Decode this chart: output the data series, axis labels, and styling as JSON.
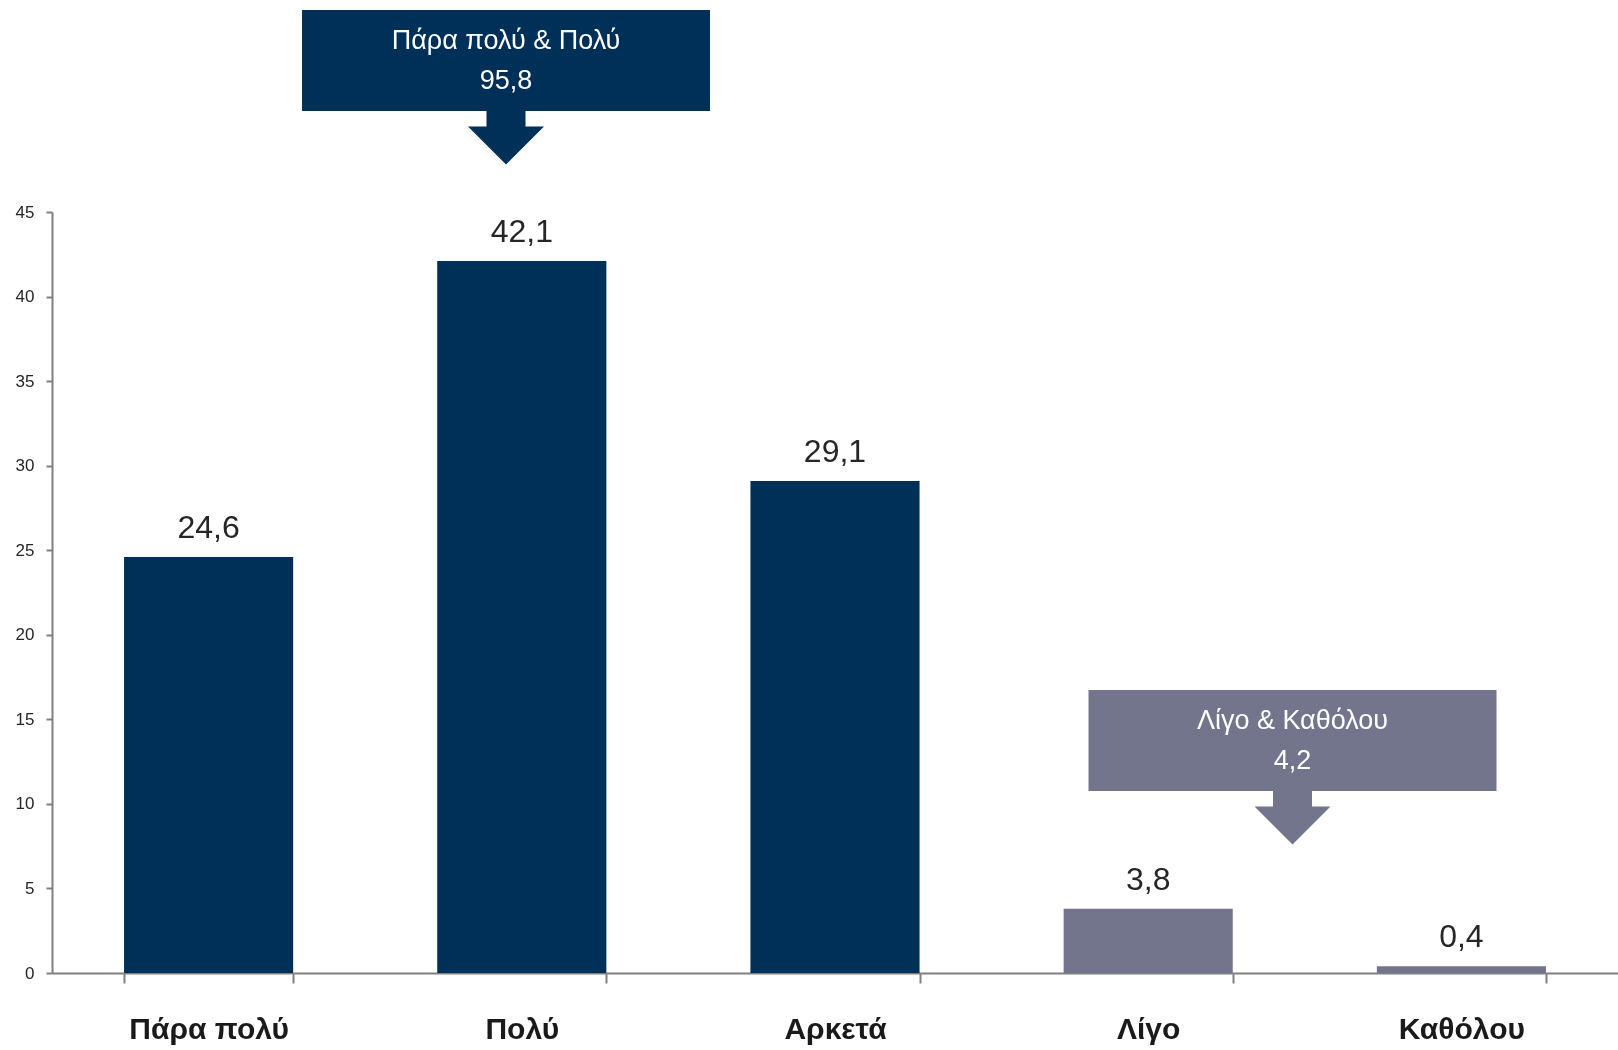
{
  "chart_data": {
    "type": "bar",
    "categories": [
      "Πάρα πολύ",
      "Πολύ",
      "Αρκετά",
      "Λίγο",
      "Καθόλου"
    ],
    "values": [
      24.6,
      42.1,
      29.1,
      3.8,
      0.4
    ],
    "colors": [
      "#003057",
      "#003057",
      "#003057",
      "#72758b",
      "#72758b"
    ],
    "value_labels": [
      "24,6",
      "42,1",
      "29,1",
      "3,8",
      "0,4"
    ],
    "ylim": [
      0,
      45
    ],
    "yticks": [
      0,
      5,
      10,
      15,
      20,
      25,
      30,
      35,
      40,
      45
    ],
    "grid": false,
    "annotations": [
      "Πάρα πολύ & Πολύ\n95,8",
      "Λίγο & Καθόλου\n4,2"
    ]
  }
}
